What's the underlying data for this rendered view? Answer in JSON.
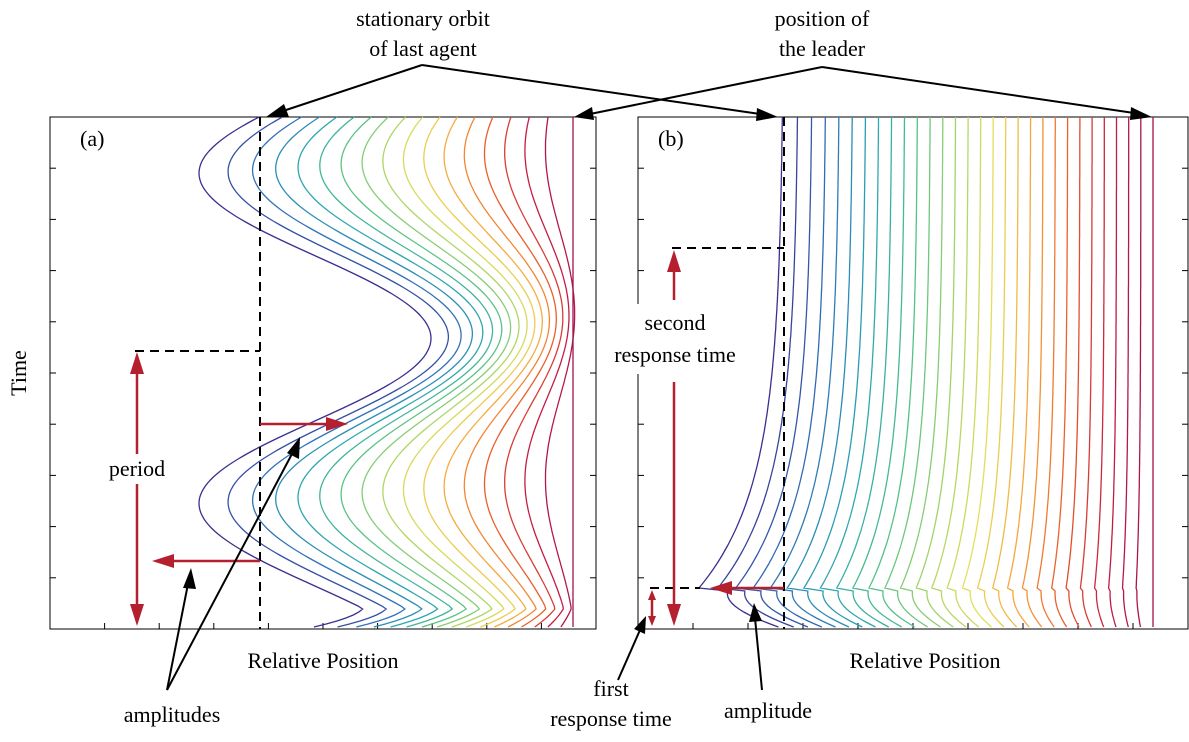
{
  "labels": {
    "top_left": "stationary orbit\nof last agent",
    "top_right": "position of\nthe leader",
    "panel_a": "(a)",
    "panel_b": "(b)",
    "ylabel": "Time",
    "xlabel_a": "Relative Position",
    "xlabel_b": "Relative Position",
    "period": "period",
    "amplitudes": "amplitudes",
    "second_response": "second\nresponse time",
    "first_response": "first\nresponse time",
    "amplitude": "amplitude"
  },
  "chart_data": [
    {
      "type": "line",
      "panel": "(a)",
      "xlabel": "Relative Position",
      "ylabel": "Time",
      "series_count": 18,
      "colormap": [
        "#3b2f8f",
        "#2f6fb8",
        "#2aa3b5",
        "#4cbf8a",
        "#9dd36a",
        "#e7de5a",
        "#f7a13a",
        "#e8552a",
        "#c21a45",
        "#a0134e"
      ],
      "grid": false,
      "annotations": [
        "period",
        "amplitudes",
        "stationary orbit of last agent",
        "position of the leader"
      ]
    },
    {
      "type": "line",
      "panel": "(b)",
      "xlabel": "Relative Position",
      "series_count": 30,
      "colormap": [
        "#3b2f8f",
        "#2f6fb8",
        "#2aa3b5",
        "#4cbf8a",
        "#9dd36a",
        "#e7de5a",
        "#f7a13a",
        "#e8552a",
        "#c21a45",
        "#a0134e"
      ],
      "grid": false,
      "annotations": [
        "second response time",
        "first response time",
        "amplitude",
        "stationary orbit of last agent",
        "position of the leader"
      ]
    }
  ]
}
